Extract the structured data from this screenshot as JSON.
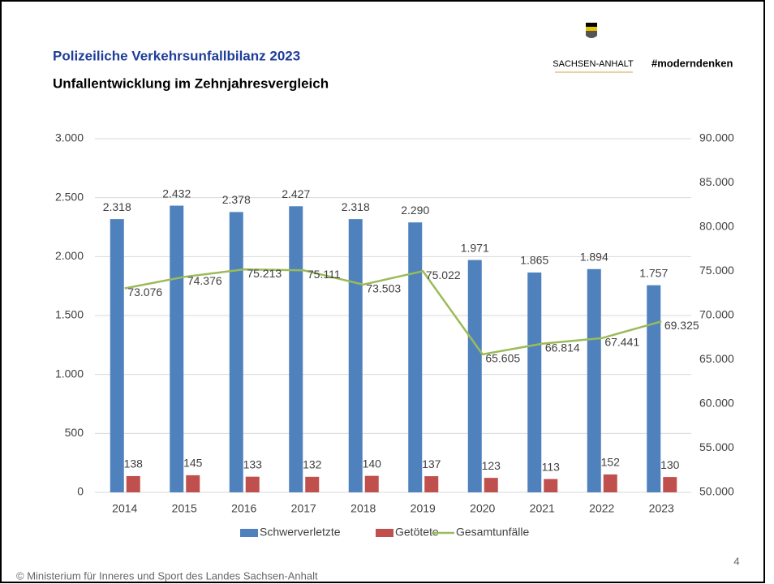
{
  "header": {
    "title": "Polizeiliche Verkehrsunfallbilanz 2023",
    "subtitle": "Unfallentwicklung im Zehnjahresvergleich",
    "logo_text": "SACHSEN-ANHALT",
    "slogan": "#moderndenken"
  },
  "chart_data": {
    "type": "bar",
    "categories": [
      "2014",
      "2015",
      "2016",
      "2017",
      "2018",
      "2019",
      "2020",
      "2021",
      "2022",
      "2023"
    ],
    "series": [
      {
        "name": "Schwerverletzte",
        "color": "#4f81bd",
        "values": [
          2318,
          2432,
          2378,
          2427,
          2318,
          2290,
          1971,
          1865,
          1894,
          1757
        ],
        "value_labels": [
          "2.318",
          "2.432",
          "2.378",
          "2.427",
          "2.318",
          "2.290",
          "1.971",
          "1.865",
          "1.894",
          "1.757"
        ]
      },
      {
        "name": "Getötete",
        "color": "#c0504d",
        "values": [
          138,
          145,
          133,
          132,
          140,
          137,
          123,
          113,
          152,
          130
        ]
      },
      {
        "name": "Gesamtunfälle",
        "color": "#9bbb59",
        "type": "line",
        "axis": "y2",
        "values": [
          73076,
          74376,
          75213,
          75111,
          73503,
          75022,
          65605,
          66814,
          67441,
          69325
        ],
        "value_labels": [
          "73.076",
          "74.376",
          "75.213",
          "75.111",
          "73.503",
          "75.022",
          "65.605",
          "66.814",
          "67.441",
          "69.325"
        ]
      }
    ],
    "ylim": [
      0,
      3000
    ],
    "yticks": [
      0,
      500,
      {
        "value": 1000,
        "label": "1.000"
      },
      {
        "value": 1500,
        "label": "1.500"
      },
      {
        "value": 2000,
        "label": "2.000"
      },
      {
        "value": 2500,
        "label": "2.500"
      },
      {
        "value": 3000,
        "label": "3.000"
      }
    ],
    "y2lim": [
      50000,
      90000
    ],
    "y2ticks": [
      {
        "value": 50000,
        "label": "50.000"
      },
      {
        "value": 55000,
        "label": "55.000"
      },
      {
        "value": 60000,
        "label": "60.000"
      },
      {
        "value": 65000,
        "label": "65.000"
      },
      {
        "value": 70000,
        "label": "70.000"
      },
      {
        "value": 75000,
        "label": "75.000"
      },
      {
        "value": 80000,
        "label": "80.000"
      },
      {
        "value": 85000,
        "label": "85.000"
      },
      {
        "value": 90000,
        "label": "90.000"
      }
    ],
    "grid": true,
    "legend": "bottom"
  },
  "footer": {
    "page": "4",
    "copyright": "© Ministerium für Inneres und Sport des Landes Sachsen-Anhalt"
  }
}
